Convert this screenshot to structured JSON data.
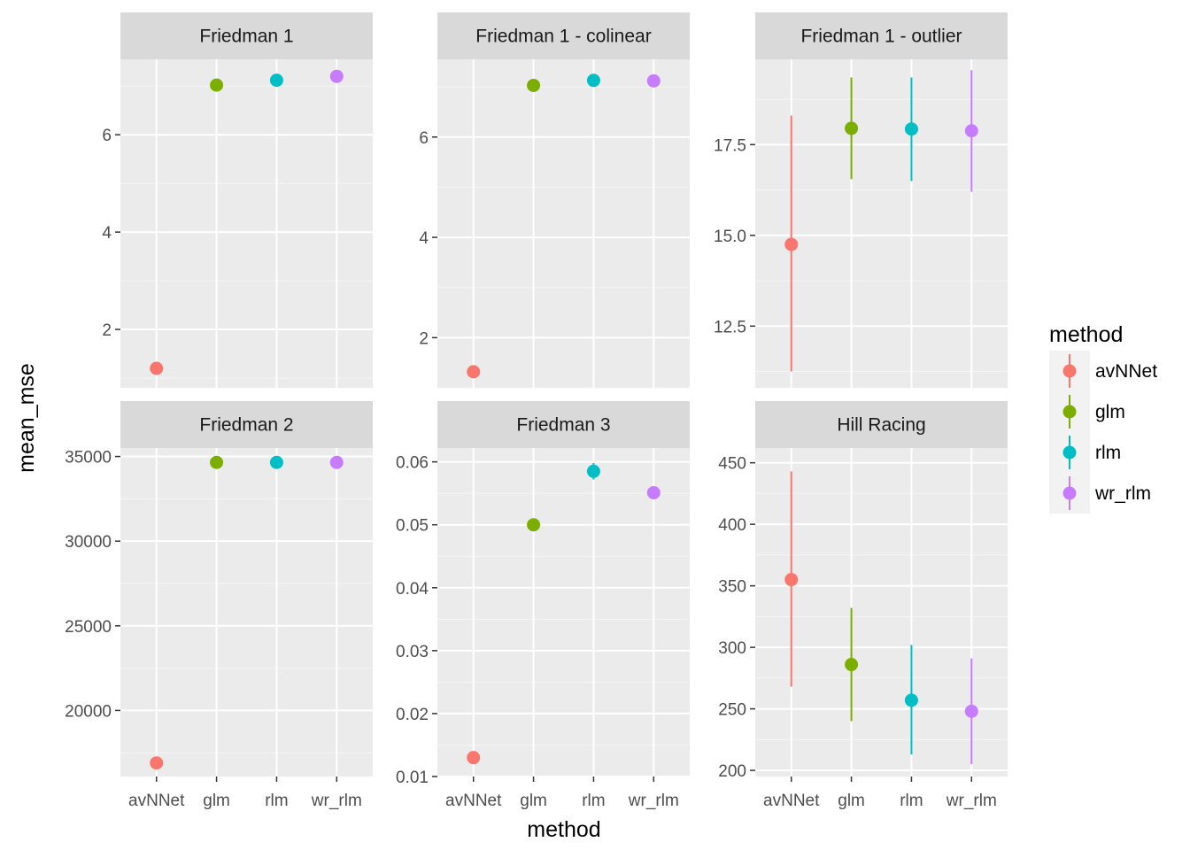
{
  "chart_data": {
    "type": "scatter",
    "subtype": "pointrange",
    "facet_layout": "3 columns x 2 rows",
    "xlabel": "method",
    "ylabel": "mean_mse",
    "categories": [
      "avNNet",
      "glm",
      "rlm",
      "wr_rlm"
    ],
    "legend": {
      "title": "method",
      "position": "right",
      "entries": [
        {
          "label": "avNNet",
          "color": "#F8766D"
        },
        {
          "label": "glm",
          "color": "#7CAE00"
        },
        {
          "label": "rlm",
          "color": "#00BFC4"
        },
        {
          "label": "wr_rlm",
          "color": "#C77CFF"
        }
      ]
    },
    "grid": true,
    "panel_background": "#EBEBEB",
    "strip_background": "#D9D9D9",
    "panels": [
      {
        "title": "Friedman 1",
        "ylim": [
          0.8,
          7.55
        ],
        "yticks": [
          2,
          4,
          6
        ],
        "ytick_labels": [
          "2",
          "4",
          "6"
        ],
        "points": [
          {
            "method": "avNNet",
            "y": 1.2
          },
          {
            "method": "glm",
            "y": 7.02
          },
          {
            "method": "rlm",
            "y": 7.12
          },
          {
            "method": "wr_rlm",
            "y": 7.2
          }
        ]
      },
      {
        "title": "Friedman 1 - colinear",
        "ylim": [
          1.0,
          7.55
        ],
        "yticks": [
          2,
          4,
          6
        ],
        "ytick_labels": [
          "2",
          "4",
          "6"
        ],
        "points": [
          {
            "method": "avNNet",
            "y": 1.32
          },
          {
            "method": "glm",
            "y": 7.03
          },
          {
            "method": "rlm",
            "y": 7.13
          },
          {
            "method": "wr_rlm",
            "y": 7.12
          }
        ]
      },
      {
        "title": "Friedman 1 - outlier",
        "ylim": [
          10.8,
          19.85
        ],
        "yticks": [
          12.5,
          15.0,
          17.5
        ],
        "ytick_labels": [
          "12.5",
          "15.0",
          "17.5"
        ],
        "points": [
          {
            "method": "avNNet",
            "y": 14.75,
            "ymin": 11.25,
            "ymax": 18.3
          },
          {
            "method": "glm",
            "y": 17.95,
            "ymin": 16.55,
            "ymax": 19.35
          },
          {
            "method": "rlm",
            "y": 17.93,
            "ymin": 16.5,
            "ymax": 19.35
          },
          {
            "method": "wr_rlm",
            "y": 17.88,
            "ymin": 16.2,
            "ymax": 19.55
          }
        ]
      },
      {
        "title": "Friedman 2",
        "ylim": [
          16100,
          35500
        ],
        "yticks": [
          20000,
          25000,
          30000,
          35000
        ],
        "ytick_labels": [
          "20000",
          "25000",
          "30000",
          "35000"
        ],
        "points": [
          {
            "method": "avNNet",
            "y": 16900
          },
          {
            "method": "glm",
            "y": 34650
          },
          {
            "method": "rlm",
            "y": 34650
          },
          {
            "method": "wr_rlm",
            "y": 34650
          }
        ]
      },
      {
        "title": "Friedman 3",
        "ylim": [
          0.01,
          0.0622
        ],
        "yticks": [
          0.01,
          0.02,
          0.03,
          0.04,
          0.05,
          0.06
        ],
        "ytick_labels": [
          "0.01",
          "0.02",
          "0.03",
          "0.04",
          "0.05",
          "0.06"
        ],
        "points": [
          {
            "method": "avNNet",
            "y": 0.013
          },
          {
            "method": "glm",
            "y": 0.05
          },
          {
            "method": "rlm",
            "y": 0.0585,
            "ymin": 0.0572,
            "ymax": 0.0598
          },
          {
            "method": "wr_rlm",
            "y": 0.0551,
            "ymin": 0.0543,
            "ymax": 0.056
          }
        ]
      },
      {
        "title": "Hill Racing",
        "ylim": [
          195,
          462
        ],
        "yticks": [
          200,
          250,
          300,
          350,
          400,
          450
        ],
        "ytick_labels": [
          "200",
          "250",
          "300",
          "350",
          "400",
          "450"
        ],
        "points": [
          {
            "method": "avNNet",
            "y": 355,
            "ymin": 268,
            "ymax": 443
          },
          {
            "method": "glm",
            "y": 286,
            "ymin": 240,
            "ymax": 332
          },
          {
            "method": "rlm",
            "y": 257,
            "ymin": 213,
            "ymax": 302
          },
          {
            "method": "wr_rlm",
            "y": 248,
            "ymin": 205,
            "ymax": 291
          }
        ]
      }
    ]
  }
}
